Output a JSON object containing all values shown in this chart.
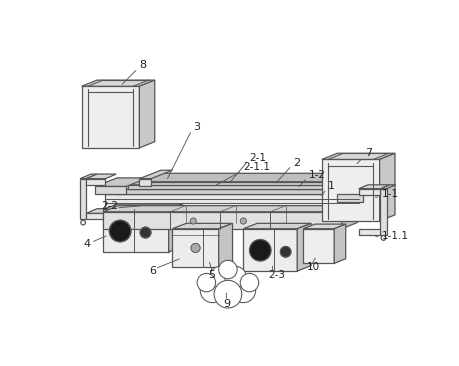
{
  "line_color": "#555555",
  "lw": 0.9,
  "fill_top": "#d8d8d8",
  "fill_front": "#eeeeee",
  "fill_side": "#bbbbbb",
  "fill_dark": "#999999",
  "label_fontsize": 7.5
}
